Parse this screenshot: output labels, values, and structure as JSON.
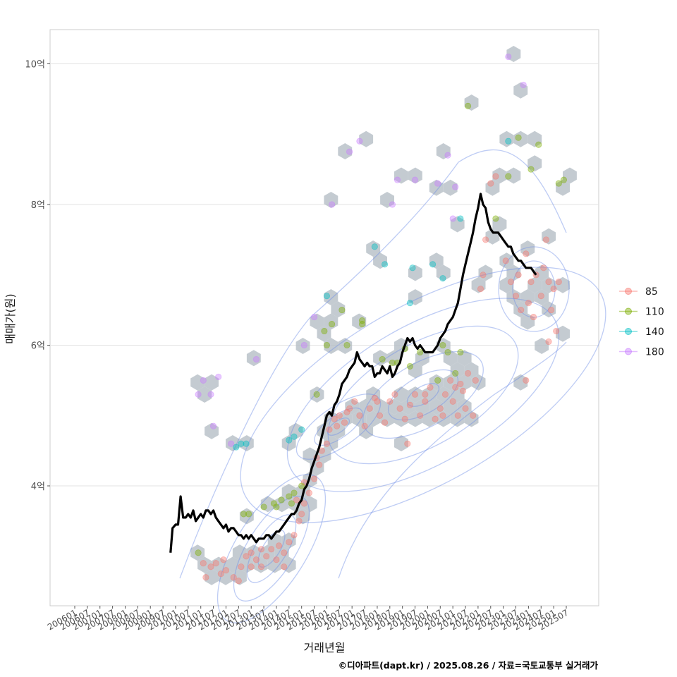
{
  "chart_data": {
    "type": "scatter",
    "xlabel": "거래년월",
    "ylabel": "매매가(원)",
    "caption": "©디아파트(dapt.kr) / 2025.08.26 / 자료=국토교통부 실거래가",
    "x_ticks": [
      "200601",
      "200607",
      "200701",
      "200707",
      "200801",
      "200807",
      "200901",
      "200907",
      "201001",
      "201007",
      "201101",
      "201107",
      "201201",
      "201207",
      "201301",
      "201307",
      "201401",
      "201407",
      "201501",
      "201507",
      "201601",
      "201607",
      "201701",
      "201707",
      "201801",
      "201807",
      "201901",
      "201907",
      "202001",
      "202007",
      "202101",
      "202107",
      "202201",
      "202207",
      "202301",
      "202307",
      "202401",
      "202407",
      "202501",
      "202507"
    ],
    "y_ticks": [
      {
        "value": 4,
        "label": "4억"
      },
      {
        "value": 6,
        "label": "6억"
      },
      {
        "value": 8,
        "label": "8억"
      },
      {
        "value": 10,
        "label": "10억"
      }
    ],
    "ylim": [
      2.35,
      10.55
    ],
    "grid": true,
    "legend_position": "right",
    "series": [
      {
        "name": "85",
        "color": "#F8766D",
        "points": [
          [
            2011.1,
            2.9
          ],
          [
            2011.2,
            2.7
          ],
          [
            2011.4,
            2.85
          ],
          [
            2011.6,
            2.9
          ],
          [
            2011.8,
            2.75
          ],
          [
            2012.0,
            2.8
          ],
          [
            2012.3,
            2.7
          ],
          [
            2012.6,
            2.85
          ],
          [
            2012.8,
            3.0
          ],
          [
            2013.0,
            3.05
          ],
          [
            2013.2,
            2.95
          ],
          [
            2013.4,
            3.1
          ],
          [
            2013.6,
            3.0
          ],
          [
            2013.8,
            3.1
          ],
          [
            2014.0,
            2.95
          ],
          [
            2014.1,
            3.15
          ],
          [
            2014.3,
            3.05
          ],
          [
            2014.5,
            3.2
          ],
          [
            2014.7,
            3.3
          ],
          [
            2014.9,
            3.5
          ],
          [
            2015.0,
            3.6
          ],
          [
            2015.1,
            3.75
          ],
          [
            2015.3,
            3.9
          ],
          [
            2015.5,
            4.1
          ],
          [
            2015.7,
            4.3
          ],
          [
            2015.8,
            4.5
          ],
          [
            2016.0,
            4.6
          ],
          [
            2016.1,
            4.8
          ],
          [
            2016.3,
            4.95
          ],
          [
            2016.5,
            5.0
          ],
          [
            2016.7,
            4.9
          ],
          [
            2016.9,
            5.1
          ],
          [
            2017.1,
            5.2
          ],
          [
            2017.3,
            5.0
          ],
          [
            2017.5,
            4.85
          ],
          [
            2017.7,
            5.1
          ],
          [
            2017.9,
            5.25
          ],
          [
            2018.1,
            5.0
          ],
          [
            2018.3,
            4.9
          ],
          [
            2018.5,
            5.2
          ],
          [
            2018.7,
            5.3
          ],
          [
            2018.9,
            5.1
          ],
          [
            2019.1,
            4.95
          ],
          [
            2019.3,
            5.15
          ],
          [
            2019.5,
            5.3
          ],
          [
            2019.7,
            5.0
          ],
          [
            2019.9,
            5.2
          ],
          [
            2020.1,
            5.4
          ],
          [
            2020.3,
            4.95
          ],
          [
            2020.5,
            5.1
          ],
          [
            2020.7,
            5.3
          ],
          [
            2020.9,
            5.5
          ],
          [
            2021.0,
            5.2
          ],
          [
            2021.1,
            5.4
          ],
          [
            2021.2,
            5.0
          ],
          [
            2021.4,
            5.35
          ],
          [
            2021.6,
            5.6
          ],
          [
            2021.8,
            5.0
          ],
          [
            2021.9,
            5.5
          ],
          [
            2022.1,
            6.8
          ],
          [
            2022.2,
            7.0
          ],
          [
            2022.3,
            7.5
          ],
          [
            2022.5,
            8.3
          ],
          [
            2022.7,
            8.4
          ],
          [
            2023.1,
            7.2
          ],
          [
            2023.3,
            6.9
          ],
          [
            2023.5,
            6.7
          ],
          [
            2023.6,
            7.0
          ],
          [
            2023.7,
            6.5
          ],
          [
            2023.9,
            7.3
          ],
          [
            2024.0,
            6.6
          ],
          [
            2024.1,
            6.9
          ],
          [
            2024.2,
            6.4
          ],
          [
            2024.3,
            7.0
          ],
          [
            2024.5,
            6.7
          ],
          [
            2024.7,
            7.5
          ],
          [
            2024.8,
            6.9
          ],
          [
            2024.9,
            6.5
          ],
          [
            2025.0,
            6.8
          ],
          [
            2025.1,
            6.2
          ],
          [
            2025.2,
            6.9
          ],
          [
            2024.8,
            6.05
          ],
          [
            2024.6,
            7.1
          ],
          [
            2023.9,
            5.5
          ],
          [
            2013.4,
            2.85
          ],
          [
            2014.3,
            2.85
          ],
          [
            2013.0,
            2.85
          ],
          [
            2011.9,
            2.95
          ],
          [
            2012.5,
            2.65
          ],
          [
            2015.6,
            4.4
          ],
          [
            2016.4,
            4.85
          ],
          [
            2019.2,
            4.6
          ],
          [
            2020.6,
            5.0
          ],
          [
            2021.5,
            5.1
          ],
          [
            2014.8,
            3.8
          ],
          [
            2015.1,
            4.05
          ],
          [
            2016.8,
            5.05
          ],
          [
            2018.0,
            5.2
          ],
          [
            2019.9,
            5.3
          ],
          [
            2021.3,
            5.45
          ]
        ]
      },
      {
        "name": "110",
        "color": "#7CAE00",
        "points": [
          [
            2010.9,
            3.05
          ],
          [
            2012.9,
            3.6
          ],
          [
            2013.5,
            3.7
          ],
          [
            2014.0,
            3.7
          ],
          [
            2014.2,
            3.8
          ],
          [
            2014.5,
            3.85
          ],
          [
            2014.7,
            3.9
          ],
          [
            2015.0,
            4.0
          ],
          [
            2015.6,
            5.3
          ],
          [
            2016.0,
            6.0
          ],
          [
            2016.2,
            6.3
          ],
          [
            2016.6,
            6.5
          ],
          [
            2016.8,
            6.0
          ],
          [
            2017.4,
            6.3
          ],
          [
            2018.2,
            5.8
          ],
          [
            2018.6,
            5.75
          ],
          [
            2018.8,
            5.75
          ],
          [
            2019.1,
            5.95
          ],
          [
            2019.3,
            5.7
          ],
          [
            2019.7,
            5.9
          ],
          [
            2020.4,
            5.5
          ],
          [
            2020.6,
            6.0
          ],
          [
            2020.8,
            5.9
          ],
          [
            2021.1,
            5.6
          ],
          [
            2021.3,
            5.9
          ],
          [
            2021.6,
            9.4
          ],
          [
            2022.7,
            7.8
          ],
          [
            2023.2,
            8.4
          ],
          [
            2023.6,
            8.95
          ],
          [
            2024.1,
            8.5
          ],
          [
            2024.4,
            8.85
          ],
          [
            2025.2,
            8.3
          ],
          [
            2025.4,
            8.35
          ],
          [
            2015.9,
            6.2
          ],
          [
            2017.4,
            6.35
          ],
          [
            2012.7,
            3.6
          ],
          [
            2013.9,
            3.75
          ],
          [
            2014.6,
            3.75
          ]
        ]
      },
      {
        "name": "140",
        "color": "#00BFC4",
        "points": [
          [
            2012.4,
            4.55
          ],
          [
            2012.6,
            4.6
          ],
          [
            2012.8,
            4.6
          ],
          [
            2014.5,
            4.65
          ],
          [
            2014.7,
            4.7
          ],
          [
            2015.0,
            4.8
          ],
          [
            2016.0,
            6.7
          ],
          [
            2017.9,
            7.4
          ],
          [
            2018.3,
            7.15
          ],
          [
            2019.4,
            7.1
          ],
          [
            2020.2,
            7.15
          ],
          [
            2020.6,
            6.95
          ],
          [
            2021.3,
            7.8
          ],
          [
            2023.2,
            8.9
          ],
          [
            2019.3,
            6.6
          ]
        ]
      },
      {
        "name": "180",
        "color": "#C77CFF",
        "points": [
          [
            2010.9,
            5.3
          ],
          [
            2011.1,
            5.5
          ],
          [
            2011.4,
            5.3
          ],
          [
            2011.7,
            5.55
          ],
          [
            2011.5,
            4.85
          ],
          [
            2012.2,
            4.6
          ],
          [
            2013.2,
            5.8
          ],
          [
            2015.1,
            6.0
          ],
          [
            2015.5,
            6.4
          ],
          [
            2016.2,
            8.0
          ],
          [
            2016.9,
            8.75
          ],
          [
            2017.3,
            8.9
          ],
          [
            2018.6,
            8.0
          ],
          [
            2018.8,
            8.35
          ],
          [
            2019.5,
            8.35
          ],
          [
            2020.4,
            8.3
          ],
          [
            2020.8,
            8.7
          ],
          [
            2021.1,
            8.25
          ],
          [
            2021.0,
            7.8
          ],
          [
            2023.2,
            10.1
          ],
          [
            2023.8,
            9.7
          ]
        ]
      }
    ],
    "trend_line": [
      [
        2009.8,
        3.05
      ],
      [
        2009.88,
        3.4
      ],
      [
        2010.0,
        3.45
      ],
      [
        2010.1,
        3.45
      ],
      [
        2010.2,
        3.85
      ],
      [
        2010.3,
        3.55
      ],
      [
        2010.4,
        3.55
      ],
      [
        2010.5,
        3.6
      ],
      [
        2010.6,
        3.55
      ],
      [
        2010.7,
        3.65
      ],
      [
        2010.8,
        3.5
      ],
      [
        2010.9,
        3.55
      ],
      [
        2011.0,
        3.6
      ],
      [
        2011.1,
        3.55
      ],
      [
        2011.2,
        3.65
      ],
      [
        2011.3,
        3.65
      ],
      [
        2011.4,
        3.6
      ],
      [
        2011.5,
        3.65
      ],
      [
        2011.6,
        3.55
      ],
      [
        2011.7,
        3.5
      ],
      [
        2011.8,
        3.45
      ],
      [
        2011.9,
        3.4
      ],
      [
        2012.0,
        3.45
      ],
      [
        2012.1,
        3.35
      ],
      [
        2012.2,
        3.4
      ],
      [
        2012.3,
        3.4
      ],
      [
        2012.4,
        3.35
      ],
      [
        2012.5,
        3.3
      ],
      [
        2012.6,
        3.3
      ],
      [
        2012.7,
        3.25
      ],
      [
        2012.8,
        3.3
      ],
      [
        2012.9,
        3.25
      ],
      [
        2013.0,
        3.3
      ],
      [
        2013.1,
        3.25
      ],
      [
        2013.2,
        3.2
      ],
      [
        2013.3,
        3.25
      ],
      [
        2013.4,
        3.25
      ],
      [
        2013.5,
        3.25
      ],
      [
        2013.6,
        3.3
      ],
      [
        2013.7,
        3.3
      ],
      [
        2013.8,
        3.25
      ],
      [
        2013.9,
        3.3
      ],
      [
        2014.0,
        3.35
      ],
      [
        2014.1,
        3.35
      ],
      [
        2014.2,
        3.4
      ],
      [
        2014.3,
        3.45
      ],
      [
        2014.4,
        3.5
      ],
      [
        2014.5,
        3.55
      ],
      [
        2014.6,
        3.6
      ],
      [
        2014.7,
        3.6
      ],
      [
        2014.8,
        3.65
      ],
      [
        2014.9,
        3.75
      ],
      [
        2015.0,
        3.8
      ],
      [
        2015.1,
        3.95
      ],
      [
        2015.2,
        4.0
      ],
      [
        2015.3,
        4.1
      ],
      [
        2015.4,
        4.25
      ],
      [
        2015.5,
        4.35
      ],
      [
        2015.6,
        4.45
      ],
      [
        2015.7,
        4.55
      ],
      [
        2015.8,
        4.7
      ],
      [
        2015.9,
        4.85
      ],
      [
        2016.0,
        5.0
      ],
      [
        2016.1,
        5.05
      ],
      [
        2016.2,
        5.0
      ],
      [
        2016.3,
        5.15
      ],
      [
        2016.4,
        5.2
      ],
      [
        2016.5,
        5.3
      ],
      [
        2016.6,
        5.45
      ],
      [
        2016.7,
        5.5
      ],
      [
        2016.8,
        5.55
      ],
      [
        2016.9,
        5.65
      ],
      [
        2017.0,
        5.7
      ],
      [
        2017.1,
        5.75
      ],
      [
        2017.2,
        5.9
      ],
      [
        2017.3,
        5.8
      ],
      [
        2017.4,
        5.75
      ],
      [
        2017.5,
        5.7
      ],
      [
        2017.6,
        5.75
      ],
      [
        2017.7,
        5.7
      ],
      [
        2017.8,
        5.7
      ],
      [
        2017.9,
        5.55
      ],
      [
        2018.0,
        5.6
      ],
      [
        2018.1,
        5.6
      ],
      [
        2018.2,
        5.7
      ],
      [
        2018.3,
        5.65
      ],
      [
        2018.4,
        5.6
      ],
      [
        2018.5,
        5.7
      ],
      [
        2018.6,
        5.55
      ],
      [
        2018.7,
        5.6
      ],
      [
        2018.8,
        5.7
      ],
      [
        2018.9,
        5.75
      ],
      [
        2019.0,
        5.9
      ],
      [
        2019.1,
        6.0
      ],
      [
        2019.2,
        6.1
      ],
      [
        2019.3,
        6.05
      ],
      [
        2019.4,
        6.1
      ],
      [
        2019.5,
        6.0
      ],
      [
        2019.6,
        5.95
      ],
      [
        2019.7,
        6.0
      ],
      [
        2019.8,
        5.95
      ],
      [
        2019.9,
        5.9
      ],
      [
        2020.0,
        5.9
      ],
      [
        2020.1,
        5.9
      ],
      [
        2020.2,
        5.9
      ],
      [
        2020.3,
        5.95
      ],
      [
        2020.4,
        6.0
      ],
      [
        2020.5,
        6.1
      ],
      [
        2020.6,
        6.15
      ],
      [
        2020.7,
        6.2
      ],
      [
        2020.8,
        6.3
      ],
      [
        2020.9,
        6.35
      ],
      [
        2021.0,
        6.4
      ],
      [
        2021.1,
        6.5
      ],
      [
        2021.2,
        6.6
      ],
      [
        2021.3,
        6.8
      ],
      [
        2021.4,
        7.0
      ],
      [
        2021.5,
        7.15
      ],
      [
        2021.6,
        7.3
      ],
      [
        2021.7,
        7.45
      ],
      [
        2021.8,
        7.6
      ],
      [
        2021.9,
        7.8
      ],
      [
        2022.0,
        7.95
      ],
      [
        2022.1,
        8.15
      ],
      [
        2022.2,
        8.0
      ],
      [
        2022.3,
        7.95
      ],
      [
        2022.4,
        7.75
      ],
      [
        2022.5,
        7.65
      ],
      [
        2022.6,
        7.6
      ],
      [
        2022.7,
        7.6
      ],
      [
        2022.8,
        7.6
      ],
      [
        2022.9,
        7.55
      ],
      [
        2023.0,
        7.5
      ],
      [
        2023.1,
        7.45
      ],
      [
        2023.2,
        7.4
      ],
      [
        2023.3,
        7.4
      ],
      [
        2023.4,
        7.3
      ],
      [
        2023.5,
        7.25
      ],
      [
        2023.6,
        7.2
      ],
      [
        2023.7,
        7.2
      ],
      [
        2023.8,
        7.15
      ],
      [
        2023.9,
        7.1
      ],
      [
        2024.0,
        7.1
      ],
      [
        2024.1,
        7.1
      ],
      [
        2024.2,
        7.05
      ],
      [
        2024.3,
        7.0
      ]
    ]
  }
}
